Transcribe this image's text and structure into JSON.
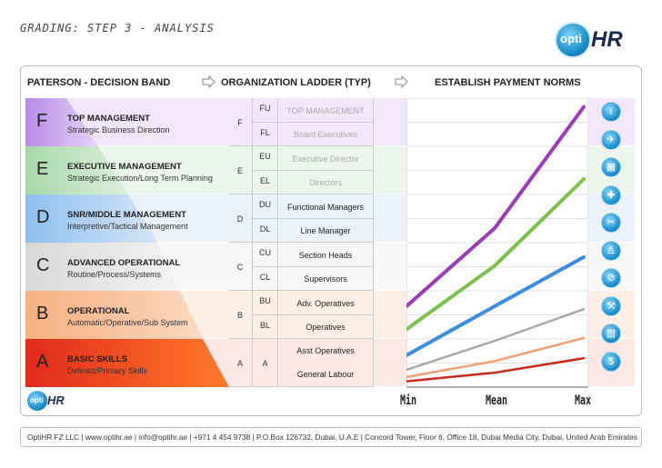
{
  "title": "GRADING: STEP 3 - ANALYSIS",
  "logo": {
    "opti": "opti",
    "hr": "HR"
  },
  "headers": {
    "paterson": "PATERSON - DECISION BAND",
    "ladder": "ORGANIZATION LADDER (TYP)",
    "payment": "ESTABLISH PAYMENT NORMS"
  },
  "bands": [
    {
      "letter": "F",
      "name": "TOP MANAGEMENT",
      "desc": "Strategic Business Direction",
      "color": "#d6b8f0"
    },
    {
      "letter": "E",
      "name": "EXECUTIVE MANAGEMENT",
      "desc": "Strategic Execution/Long Term Planning",
      "color": "#c8e6c8"
    },
    {
      "letter": "D",
      "name": "SNR/MIDDLE MANAGEMENT",
      "desc": "Interpretive/Tactical Management",
      "color": "#c6daf2"
    },
    {
      "letter": "C",
      "name": "ADVANCED OPERATIONAL",
      "desc": "Routine/Process/Systems",
      "color": "#e8e8e8"
    },
    {
      "letter": "B",
      "name": "OPERATIONAL",
      "desc": "Automatic/Operative/Sub System",
      "color": "#f8d0b4"
    },
    {
      "letter": "A",
      "name": "BASIC SKILLS",
      "desc": "Defined/Primary Skills",
      "color": "#e02a1a"
    }
  ],
  "ladder": [
    {
      "grade": "F",
      "sub": [
        "FU",
        "FL"
      ],
      "roles": [
        "TOP MANAGEMENT",
        "Board Executives"
      ],
      "faded": true
    },
    {
      "grade": "E",
      "sub": [
        "EU",
        "EL"
      ],
      "roles": [
        "Executive Director",
        "Directors"
      ],
      "faded": true
    },
    {
      "grade": "D",
      "sub": [
        "DU",
        "DL"
      ],
      "roles": [
        "Functional Managers",
        "Line Manager"
      ],
      "faded": false
    },
    {
      "grade": "C",
      "sub": [
        "CU",
        "CL"
      ],
      "roles": [
        "Section Heads",
        "Supervisors"
      ],
      "faded": false
    },
    {
      "grade": "B",
      "sub": [
        "BU",
        "BL"
      ],
      "roles": [
        "Adv. Operatives",
        "Operatives"
      ],
      "faded": false
    },
    {
      "grade": "A",
      "sub": [
        "A"
      ],
      "roles": [
        "Asst Operatives",
        "General Labour"
      ],
      "faded": false
    }
  ],
  "chart_data": {
    "type": "line",
    "categories": [
      "Min",
      "Mean",
      "Max"
    ],
    "series": [
      {
        "values": [
          0.28,
          0.55,
          0.97
        ],
        "color": "#9b3cb8"
      },
      {
        "values": [
          0.2,
          0.42,
          0.72
        ],
        "color": "#7cc24a"
      },
      {
        "values": [
          0.11,
          0.28,
          0.45
        ],
        "color": "#3a8ee0"
      },
      {
        "values": [
          0.06,
          0.16,
          0.27
        ],
        "color": "#a8a8a8"
      },
      {
        "values": [
          0.035,
          0.09,
          0.17
        ],
        "color": "#f0a070"
      },
      {
        "values": [
          0.02,
          0.05,
          0.1
        ],
        "color": "#c62a1a"
      }
    ],
    "grid": true
  },
  "icons": [
    "info-icon",
    "plane-icon",
    "factory-icon",
    "cross-icon",
    "scissors-icon",
    "person-icon",
    "pill-icon",
    "tools-icon",
    "building-icon",
    "dollar-icon"
  ],
  "footer": "OptiHR FZ LLC  |  www.optihr.ae  |  info@optihr.ae  |  +971 4 454 9738  |  P.O.Box 126732, Dubai, U.A.E  |  Concord Tower, Floor 6, Office 18, Dubai Media City, Dubai, United Arab Emirates"
}
